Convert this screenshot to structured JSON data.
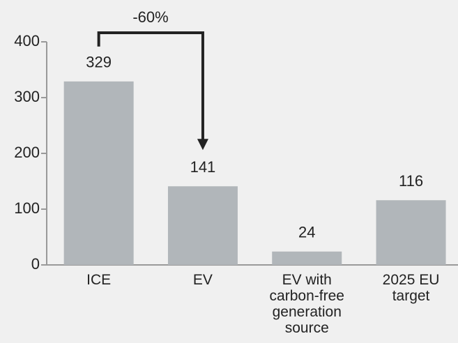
{
  "chart_data": {
    "type": "bar",
    "categories": [
      "ICE",
      "EV",
      "EV with carbon-free generation source",
      "2025 EU target"
    ],
    "values": [
      329,
      141,
      24,
      116
    ],
    "color": "#b1b6ba",
    "ylim": [
      0,
      400
    ],
    "yticks": [
      0,
      100,
      200,
      300,
      400
    ],
    "grid": false,
    "annotation": "-60%"
  }
}
